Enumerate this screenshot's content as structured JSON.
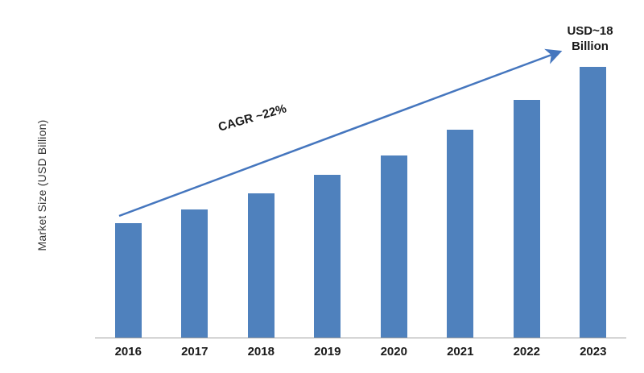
{
  "chart_data": {
    "type": "bar",
    "categories": [
      "2016",
      "2017",
      "2018",
      "2019",
      "2020",
      "2021",
      "2022",
      "2023"
    ],
    "values": [
      7.6,
      8.5,
      9.6,
      10.8,
      12.1,
      13.8,
      15.8,
      18
    ],
    "title": "",
    "xlabel": "",
    "ylabel": "Market Size (USD Billion)",
    "ylim": [
      0,
      18
    ],
    "grid": false,
    "legend": false,
    "bar_color": "#4F81BD",
    "axis_color": "#a0a0a0",
    "annotations": {
      "cagr_label": "CAGR ~22%",
      "end_label_lines": [
        "USD~18",
        "Billion"
      ],
      "arrow_color": "#4576BE"
    }
  }
}
